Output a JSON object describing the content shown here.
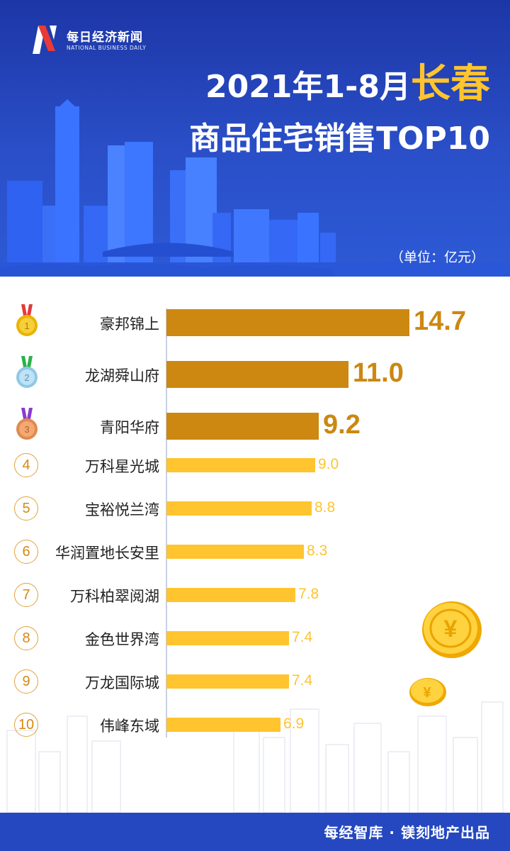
{
  "logo": {
    "cn": "每日经济新闻",
    "en": "NATIONAL BUSINESS DAILY"
  },
  "title": {
    "prefix": "2021年1-8月",
    "city": "长春",
    "line2": "商品住宅销售TOP10"
  },
  "unit": "（单位：亿元）",
  "footer": {
    "text": "每经智库 · 镁刻地产出品"
  },
  "colors": {
    "top3_bar": "#cc8811",
    "top3_text": "#cc8811",
    "other_bar": "#ffc42e",
    "other_text": "#ffc42e",
    "header_bg": "#2a4fc8",
    "footer_bg": "#2548c0"
  },
  "chart_data": {
    "type": "bar",
    "orientation": "horizontal",
    "title": "2021年1-8月长春商品住宅销售TOP10",
    "unit": "（单位：亿元）",
    "ranks": [
      "1",
      "2",
      "3",
      "4",
      "5",
      "6",
      "7",
      "8",
      "9",
      "10"
    ],
    "rank_icons": [
      "gold-medal-icon",
      "silver-medal-icon",
      "bronze-medal-icon"
    ],
    "categories": [
      "豪邦锦上",
      "龙湖舜山府",
      "青阳华府",
      "万科星光城",
      "宝裕悦兰湾",
      "华润置地长安里",
      "万科柏翠阅湖",
      "金色世界湾",
      "万龙国际城",
      "伟峰东域"
    ],
    "values": [
      14.7,
      11.0,
      9.2,
      9.0,
      8.8,
      8.3,
      7.8,
      7.4,
      7.4,
      6.9
    ],
    "value_labels": [
      "14.7",
      "11.0",
      "9.2",
      "9.0",
      "8.8",
      "8.3",
      "7.8",
      "7.4",
      "7.4",
      "6.9"
    ],
    "xlim": [
      0,
      15
    ],
    "grid": false,
    "legend": "none"
  }
}
